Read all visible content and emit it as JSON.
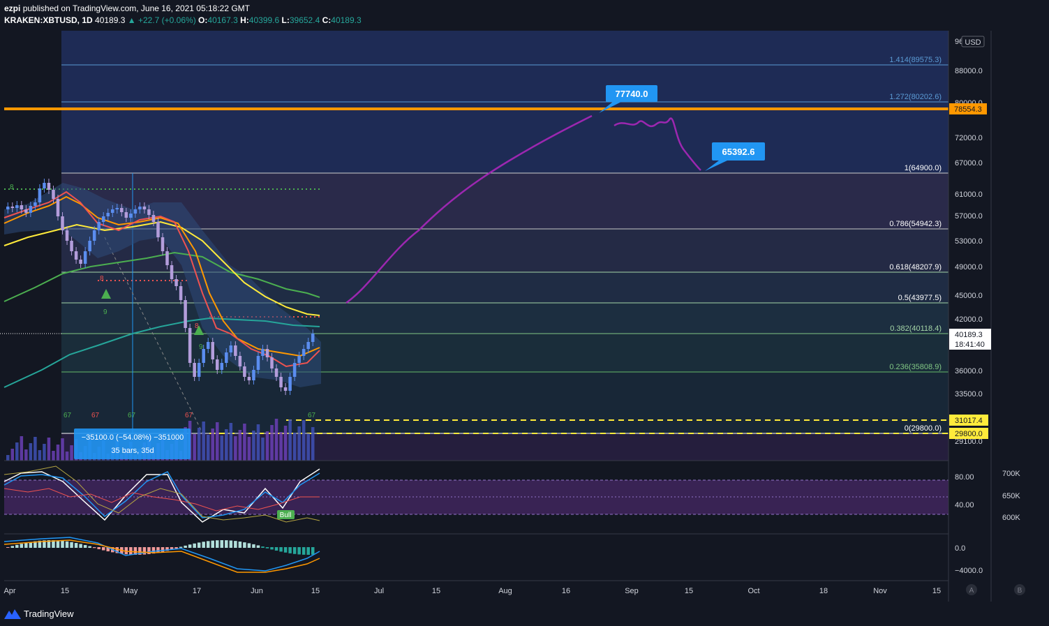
{
  "header": {
    "publisher": "ezpi",
    "published_text": "published on TradingView.com, June 16, 2021 05:18:22 GMT",
    "symbol": "KRAKEN:XBTUSD, 1D",
    "last": "40189.3",
    "change": "▲ +22.7 (+0.06%)",
    "open_label": "O:",
    "open": "40167.3",
    "high_label": "H:",
    "high": "40399.6",
    "low_label": "L:",
    "low": "39652.4",
    "close_label": "C:",
    "close": "40189.3"
  },
  "price_axis": {
    "currency": "USD",
    "ticks": [
      "88000.0",
      "80000.0",
      "72000.0",
      "67000.0",
      "61000.0",
      "57000.0",
      "53000.0",
      "49000.0",
      "45000.0",
      "42000.0",
      "36000.0",
      "33500.0",
      "29100.0"
    ],
    "top_cut": "96",
    "last_price": "40189.3",
    "countdown": "18:41:40",
    "tag_orange": "78554.3",
    "tag_yellow1": "31017.4",
    "tag_yellow2": "29800.0"
  },
  "fib_levels": [
    {
      "label": "1.414(89575.3)",
      "color": "#5b9bd5"
    },
    {
      "label": "1.272(80202.6)",
      "color": "#5b9bd5"
    },
    {
      "label": "1(64900.0)",
      "color": "#ffffff"
    },
    {
      "label": "0.786(54942.3)",
      "color": "#ffffff"
    },
    {
      "label": "0.618(48207.9)",
      "color": "#ffffff"
    },
    {
      "label": "0.5(43977.5)",
      "color": "#ffffff"
    },
    {
      "label": "0.382(40118.4)",
      "color": "#a5d6a7"
    },
    {
      "label": "0.236(35808.9)",
      "color": "#81c784"
    },
    {
      "label": "0(29800.0)",
      "color": "#ffffff"
    }
  ],
  "callouts": {
    "target_high": "77740.0",
    "target_low": "65392.6"
  },
  "measure": {
    "line1": "−35100.0 (−54.08%) −351000",
    "line2": "35 bars, 35d"
  },
  "seq_labels": [
    "8",
    "9",
    "8",
    "9",
    "8",
    "67",
    "67",
    "67",
    "67",
    "67"
  ],
  "indicator1": {
    "ticks": [
      "80.00",
      "40.00"
    ],
    "right_ticks": [
      "700K",
      "650K",
      "600K"
    ],
    "badge": "Bull"
  },
  "indicator2": {
    "ticks": [
      "0.0",
      "−4000.0"
    ]
  },
  "time_axis": {
    "labels": [
      "Apr",
      "15",
      "May",
      "17",
      "Jun",
      "15",
      "Jul",
      "15",
      "Aug",
      "16",
      "Sep",
      "15",
      "Oct",
      "18",
      "Nov",
      "15"
    ]
  },
  "scale_buttons": [
    "A",
    "B"
  ],
  "footer": {
    "brand": "TradingView"
  },
  "colors": {
    "bg": "#131722",
    "accent_orange": "#ff9800",
    "accent_yellow": "#ffeb3b",
    "callout_blue": "#2196f3",
    "projection_purple": "#9c27b0"
  }
}
